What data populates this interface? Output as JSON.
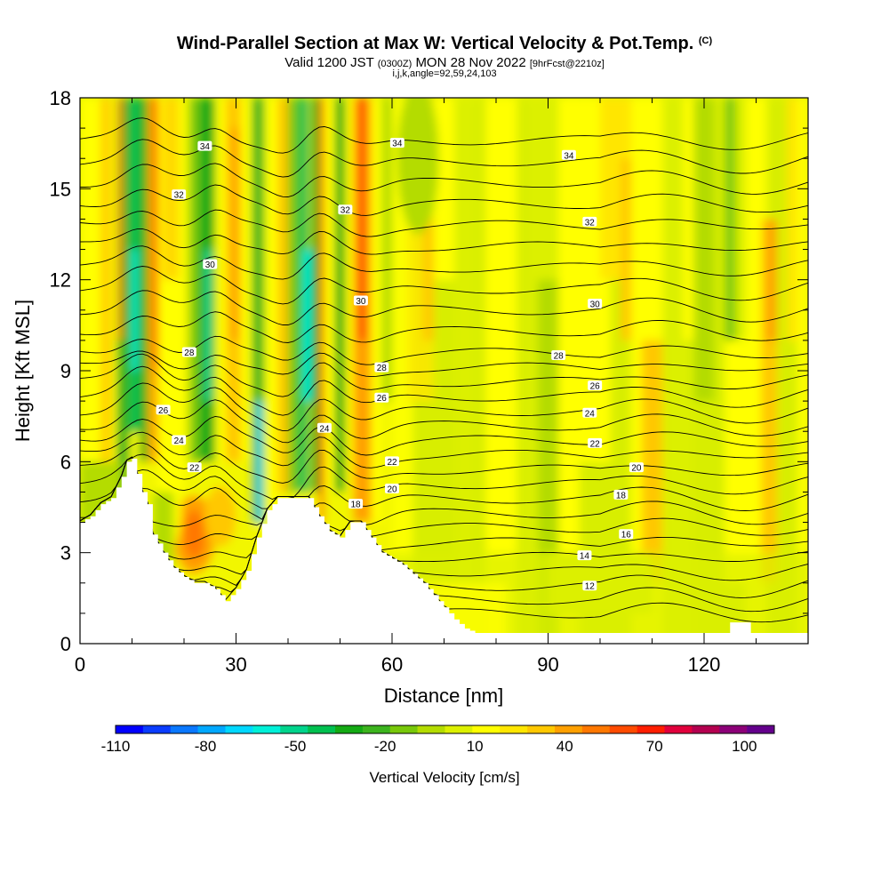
{
  "header": {
    "title_main": "Wind-Parallel Section at Max W: Vertical Velocity & Pot.Temp.",
    "title_mark": "(C)",
    "valid_a": "Valid 1200 JST",
    "valid_b": "(0300Z)",
    "valid_c": "MON 28 Nov 2022",
    "valid_d": "[9hrFcst@2210z]",
    "indices": "i,j,k,angle=92,59,24,103"
  },
  "chart_data": {
    "type": "heatmap",
    "xlabel": "Distance [nm]",
    "ylabel": "Height [Kft MSL]",
    "xlim": [
      0,
      140
    ],
    "ylim": [
      0,
      18
    ],
    "x_ticks": [
      0,
      30,
      60,
      90,
      120
    ],
    "y_ticks": [
      0,
      3,
      6,
      9,
      12,
      15,
      18
    ],
    "colorbar": {
      "title": "Vertical Velocity [cm/s]",
      "min": -110,
      "max": 110,
      "step": 10,
      "tick_labels": [
        "-110",
        "-80",
        "-50",
        "-20",
        "10",
        "40",
        "70",
        "100"
      ],
      "tick_values": [
        -110,
        -80,
        -50,
        -20,
        10,
        40,
        70,
        100
      ],
      "colors": [
        "#0000ff",
        "#0a3cff",
        "#0a78ff",
        "#00a8ff",
        "#00d8ff",
        "#00f0d8",
        "#00d48c",
        "#00c050",
        "#14aa14",
        "#3cb41e",
        "#78c80a",
        "#b4dc00",
        "#dcf000",
        "#ffff00",
        "#ffe600",
        "#ffc800",
        "#ffa000",
        "#ff7800",
        "#ff4b00",
        "#ff1e00",
        "#e1003c",
        "#b40050",
        "#8c0078",
        "#64008c"
      ]
    },
    "theta_labels": [
      {
        "x": 24,
        "y": 16.4,
        "v": "34"
      },
      {
        "x": 61,
        "y": 16.5,
        "v": "34"
      },
      {
        "x": 94,
        "y": 16.1,
        "v": "34"
      },
      {
        "x": 19,
        "y": 14.8,
        "v": "32"
      },
      {
        "x": 51,
        "y": 14.3,
        "v": "32"
      },
      {
        "x": 98,
        "y": 13.9,
        "v": "32"
      },
      {
        "x": 25,
        "y": 12.5,
        "v": "30"
      },
      {
        "x": 54,
        "y": 11.3,
        "v": "30"
      },
      {
        "x": 99,
        "y": 11.2,
        "v": "30"
      },
      {
        "x": 21,
        "y": 9.6,
        "v": "28"
      },
      {
        "x": 58,
        "y": 9.1,
        "v": "28"
      },
      {
        "x": 92,
        "y": 9.5,
        "v": "28"
      },
      {
        "x": 99,
        "y": 8.5,
        "v": "26"
      },
      {
        "x": 16,
        "y": 7.7,
        "v": "26"
      },
      {
        "x": 58,
        "y": 8.1,
        "v": "26"
      },
      {
        "x": 47,
        "y": 7.1,
        "v": "24"
      },
      {
        "x": 98,
        "y": 7.6,
        "v": "24"
      },
      {
        "x": 19,
        "y": 6.7,
        "v": "24"
      },
      {
        "x": 22,
        "y": 5.8,
        "v": "22"
      },
      {
        "x": 60,
        "y": 6.0,
        "v": "22"
      },
      {
        "x": 99,
        "y": 6.6,
        "v": "22"
      },
      {
        "x": 60,
        "y": 5.1,
        "v": "20"
      },
      {
        "x": 107,
        "y": 5.8,
        "v": "20"
      },
      {
        "x": 53,
        "y": 4.6,
        "v": "18"
      },
      {
        "x": 104,
        "y": 4.9,
        "v": "18"
      },
      {
        "x": 105,
        "y": 3.6,
        "v": "16"
      },
      {
        "x": 97,
        "y": 2.9,
        "v": "14"
      },
      {
        "x": 98,
        "y": 1.9,
        "v": "12"
      }
    ]
  }
}
